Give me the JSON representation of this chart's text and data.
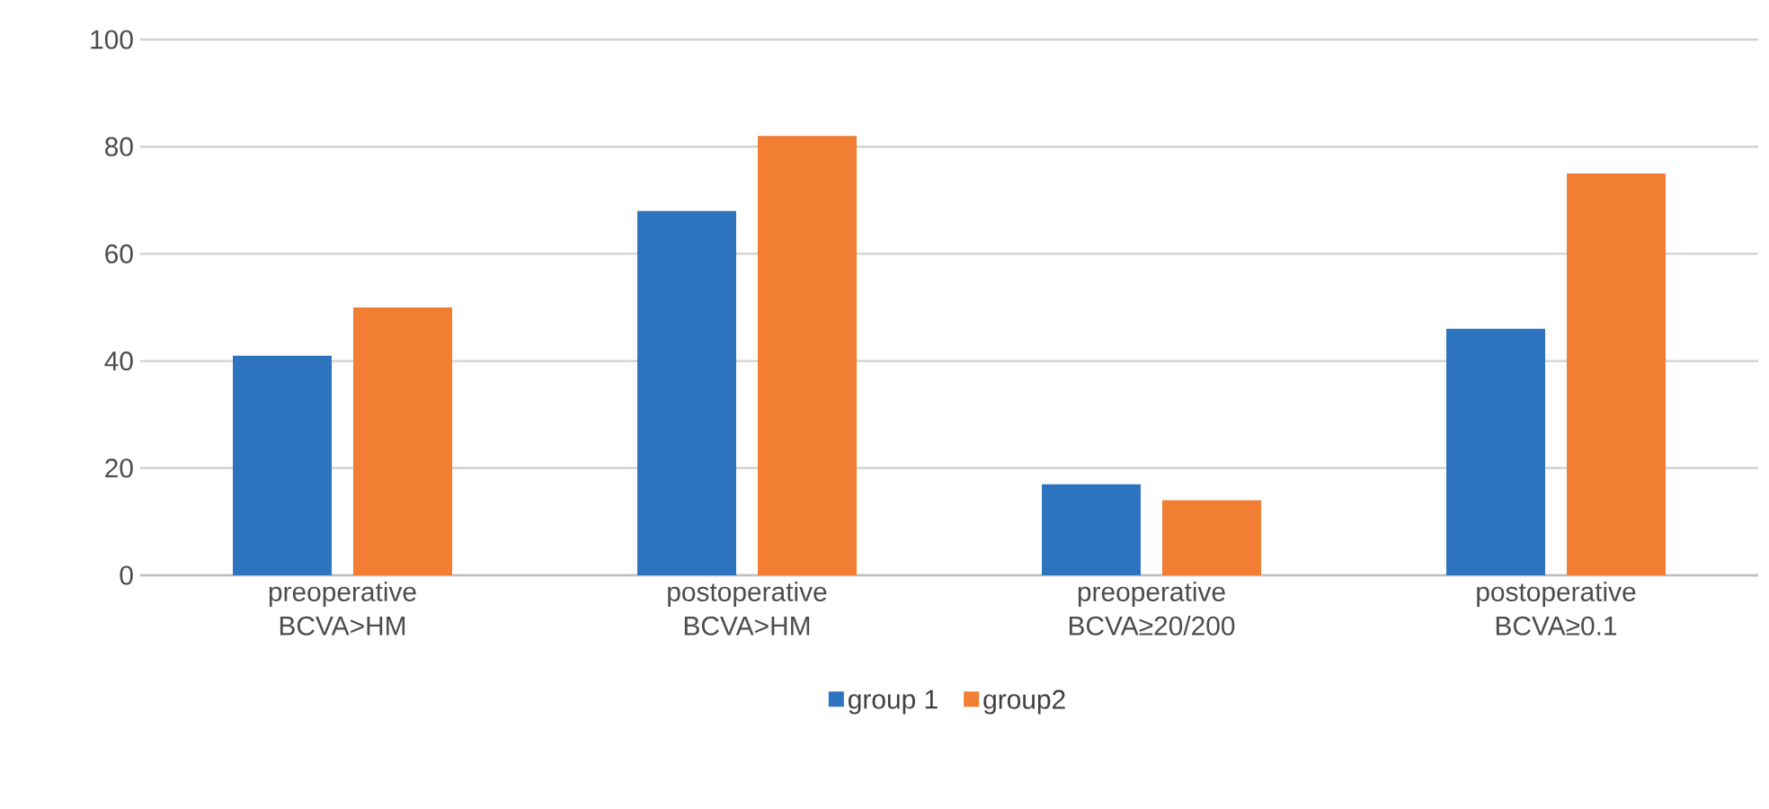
{
  "chart_data": {
    "type": "bar",
    "categories": [
      "preoperative BCVA>HM",
      "postoperative BCVA>HM",
      "preoperative BCVA≥20/200",
      "postoperative BCVA≥0.1"
    ],
    "series": [
      {
        "name": "group 1",
        "color": "#2e73bd",
        "values": [
          41,
          68,
          17,
          46
        ]
      },
      {
        "name": "group2",
        "color": "#f27e33",
        "values": [
          50,
          82,
          14,
          75
        ]
      }
    ],
    "ylim": [
      0,
      100
    ],
    "yticks": [
      0,
      20,
      40,
      60,
      80,
      100
    ],
    "grid": "y",
    "legend": "bottom"
  }
}
